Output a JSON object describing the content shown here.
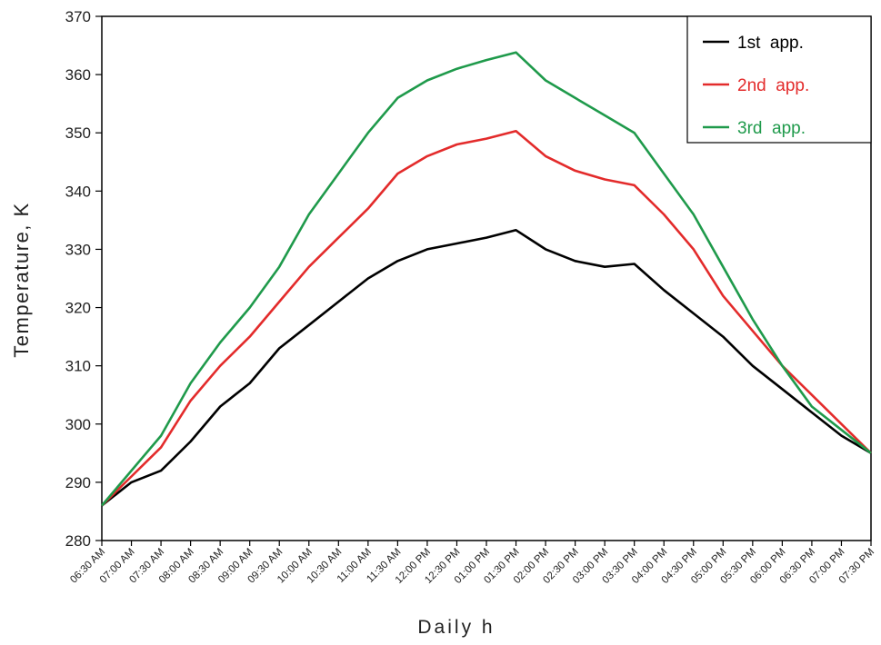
{
  "chart_data": {
    "type": "line",
    "title": "",
    "xlabel": "Daily h",
    "ylabel": "Temperature, K",
    "ylim": [
      280,
      370
    ],
    "yticks": [
      280,
      290,
      300,
      310,
      320,
      330,
      340,
      350,
      360,
      370
    ],
    "grid": false,
    "legend_position": "top-right",
    "categories": [
      "06:30 AM",
      "07:00 AM",
      "07:30 AM",
      "08:00 AM",
      "08:30 AM",
      "09:00 AM",
      "09:30 AM",
      "10:00 AM",
      "10:30 AM",
      "11:00 AM",
      "11:30 AM",
      "12:00 PM",
      "12:30 PM",
      "01:00 PM",
      "01:30 PM",
      "02:00 PM",
      "02:30 PM",
      "03:00 PM",
      "03:30 PM",
      "04:00 PM",
      "04:30 PM",
      "05:00 PM",
      "05:30 PM",
      "06:00 PM",
      "06:30 PM",
      "07:00 PM",
      "07:30 PM"
    ],
    "series": [
      {
        "name": "1st  app.",
        "color": "#000000",
        "values": [
          286,
          290,
          292,
          297,
          303,
          307,
          313,
          317,
          321,
          325,
          328,
          330,
          331,
          332,
          333.3,
          330,
          328,
          327,
          327.5,
          323,
          319,
          315,
          310,
          306,
          302,
          298,
          295
        ]
      },
      {
        "name": "2nd  app.",
        "color": "#e32b2b",
        "values": [
          286,
          291,
          296,
          304,
          310,
          315,
          321,
          327,
          332,
          337,
          343,
          346,
          348,
          349,
          350.3,
          346,
          343.5,
          342,
          341,
          336,
          330,
          322,
          316,
          310,
          305,
          300,
          295
        ]
      },
      {
        "name": "3rd  app.",
        "color": "#1f9a4b",
        "values": [
          286,
          292,
          298,
          307,
          314,
          320,
          327,
          336,
          343,
          350,
          356,
          359,
          361,
          362.5,
          363.8,
          359,
          356,
          353,
          350,
          343,
          336,
          327,
          318,
          310,
          303,
          299,
          295
        ]
      }
    ]
  }
}
